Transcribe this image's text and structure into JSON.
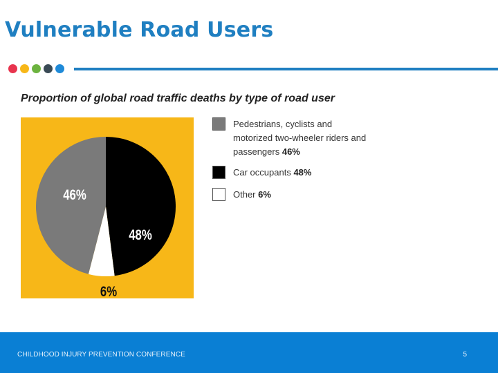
{
  "header": {
    "title": "Vulnerable Road Users",
    "dot_colors": [
      "#e8344e",
      "#f7b718",
      "#6cb33f",
      "#3a4a55",
      "#1f8ad8"
    ],
    "rule_color": "#1f7fc1"
  },
  "chart_data": {
    "type": "pie",
    "title": "Proportion of global road traffic deaths by type of road user",
    "background_color": "#f7b718",
    "slices": [
      {
        "label": "Car occupants",
        "value": 48,
        "display": "48%",
        "color": "#000000"
      },
      {
        "label": "Other",
        "value": 6,
        "display": "6%",
        "color": "#ffffff"
      },
      {
        "label": "Pedestrians, cyclists and motorized two-wheeler riders and passengers",
        "value": 46,
        "display": "46%",
        "color": "#7a7a7a"
      }
    ],
    "legend": [
      {
        "text": "Pedestrians, cyclists and motorized two-wheeler riders and passengers",
        "value": "46%",
        "color": "#7a7a7a"
      },
      {
        "text": "Car occupants",
        "value": "48%",
        "color": "#000000"
      },
      {
        "text": "Other",
        "value": "6%",
        "color": "#ffffff"
      }
    ],
    "legend_position": "right"
  },
  "footer": {
    "conference": "CHILDHOOD INJURY PREVENTION CONFERENCE",
    "page_number": "5",
    "color": "#0a7fd4"
  }
}
